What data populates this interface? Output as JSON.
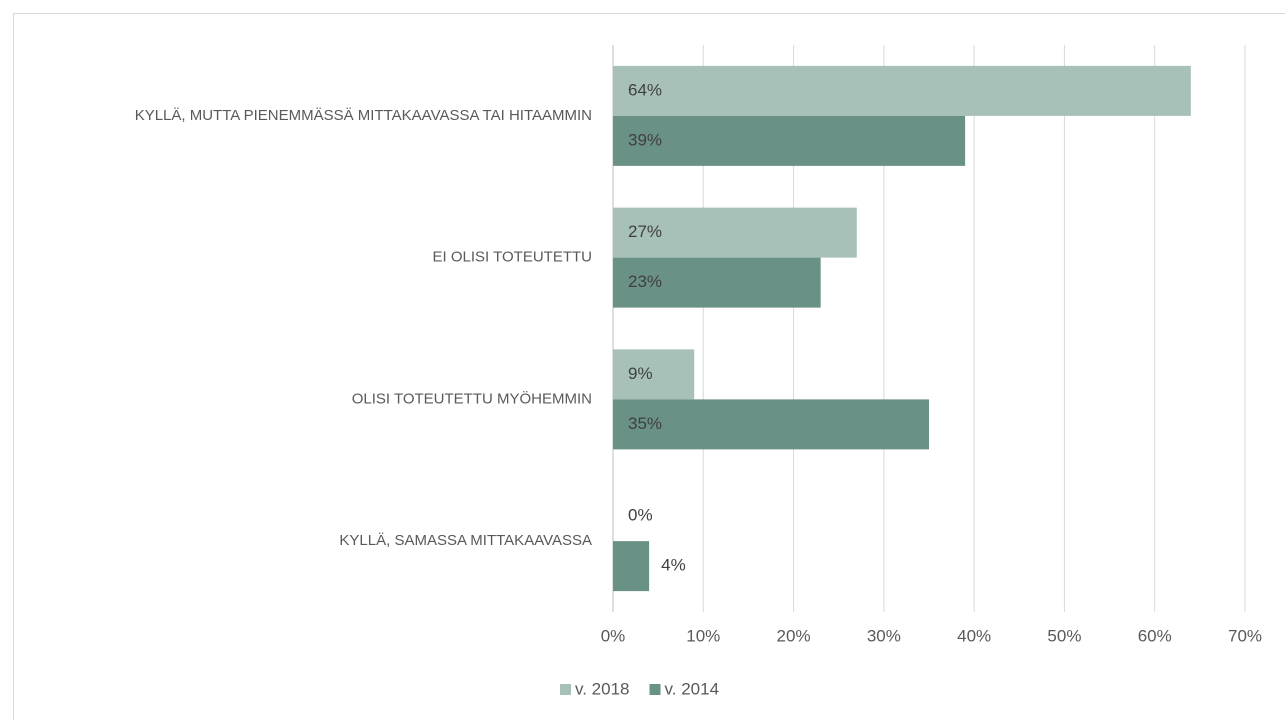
{
  "chart_data": {
    "type": "barh",
    "categories": [
      "KYLLÄ, MUTTA PIENEMMÄSSÄ MITTAKAAVASSA TAI HITAAMMIN",
      "EI OLISI TOTEUTETTU",
      "OLISI TOTEUTETTU MYÖHEMMIN",
      "KYLLÄ, SAMASSA MITTAKAAVASSA"
    ],
    "series": [
      {
        "name": "v. 2018",
        "color": "#a7c1b9",
        "values": [
          64,
          27,
          9,
          0
        ],
        "value_labels": [
          "64%",
          "27%",
          "9%",
          "0%"
        ]
      },
      {
        "name": "v. 2014",
        "color": "#6a9186",
        "values": [
          39,
          23,
          35,
          4
        ],
        "value_labels": [
          "39%",
          "23%",
          "35%",
          "4%"
        ]
      }
    ],
    "xlim": [
      0,
      70
    ],
    "xticks": [
      {
        "value": 0,
        "label": "0%"
      },
      {
        "value": 10,
        "label": "10%"
      },
      {
        "value": 20,
        "label": "20%"
      },
      {
        "value": 30,
        "label": "30%"
      },
      {
        "value": 40,
        "label": "40%"
      },
      {
        "value": 50,
        "label": "50%"
      },
      {
        "value": 60,
        "label": "60%"
      },
      {
        "value": 70,
        "label": "70%"
      }
    ],
    "grid": true,
    "legend": "bottom"
  }
}
